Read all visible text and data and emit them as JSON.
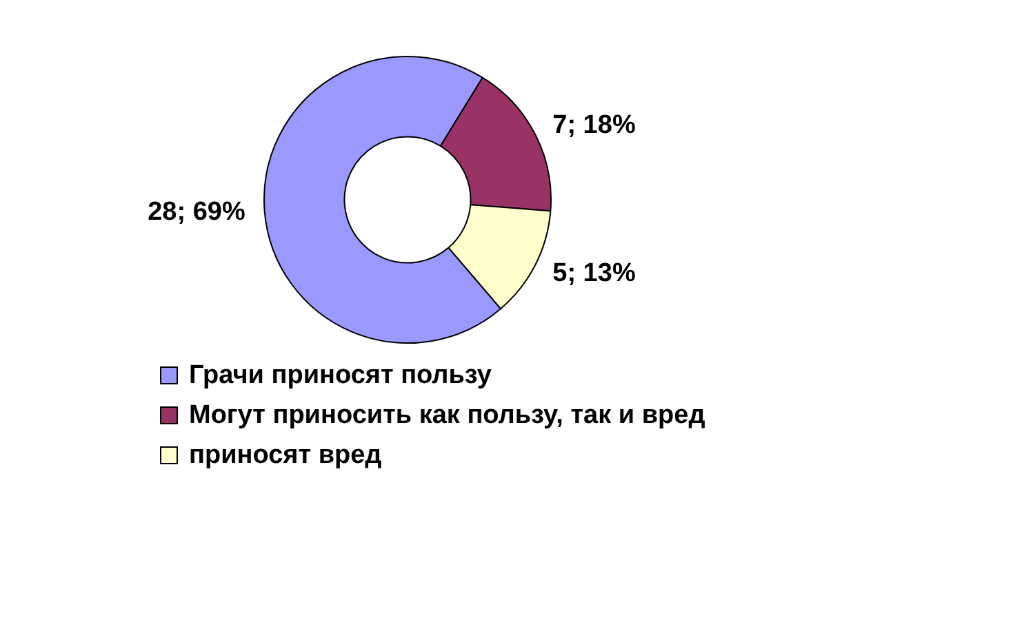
{
  "chart_data": {
    "type": "donut",
    "categories": [
      "Грачи приносят пользу",
      "Могут приносить как пользу, так и вред",
      "приносят вред"
    ],
    "values": [
      28,
      7,
      5
    ],
    "colors": [
      "#9999ff",
      "#993366",
      "#ffffcc"
    ],
    "value_labels": [
      "28; 69%",
      "7; 18%",
      "5; 13%"
    ],
    "legend": "bottom"
  }
}
